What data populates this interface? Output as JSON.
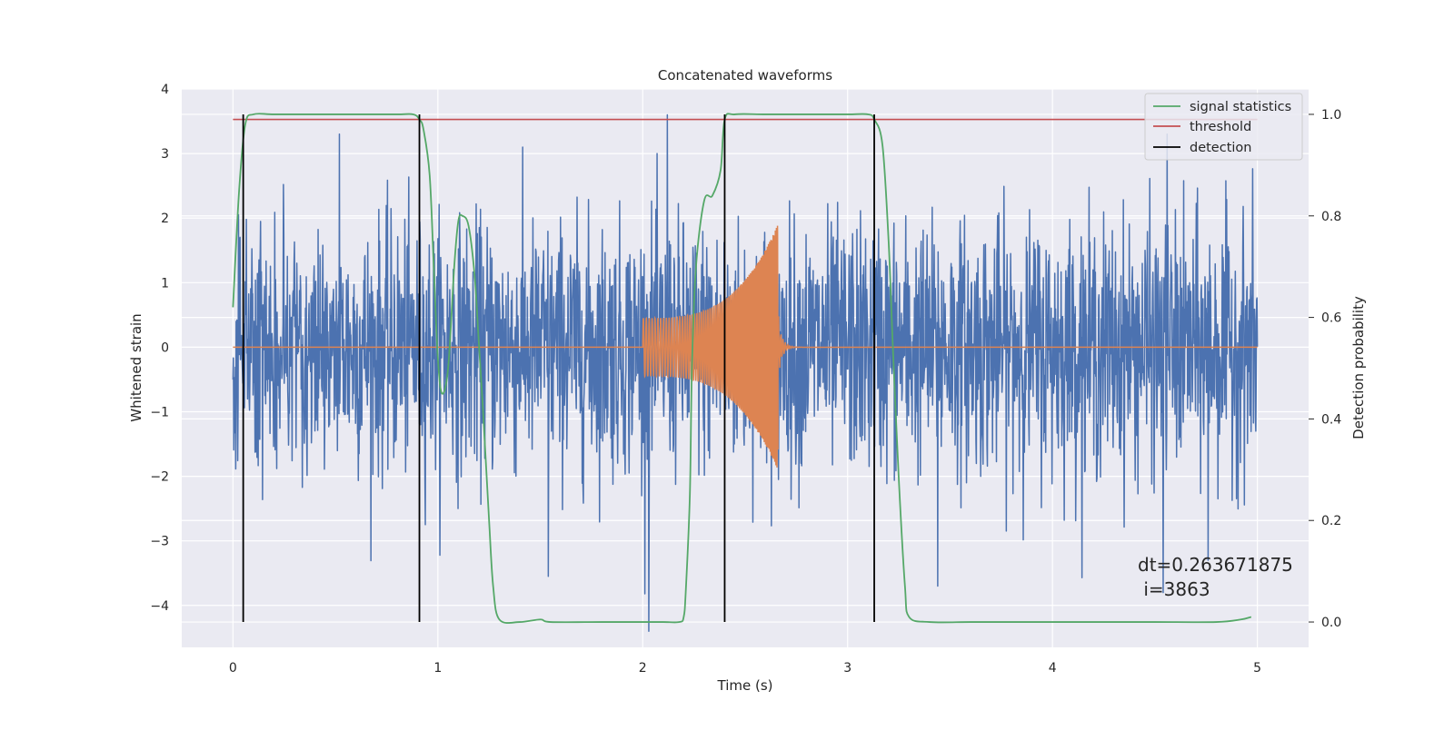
{
  "chart_data": {
    "type": "line",
    "title": "Concatenated waveforms",
    "xlabel": "Time (s)",
    "ylabel": "Whitened strain",
    "y2label": "Detection probability",
    "xlim": [
      -0.25,
      5.25
    ],
    "ylim": [
      -4.65,
      4.0
    ],
    "y2lim": [
      -0.05,
      1.05
    ],
    "xticks": [
      0,
      1,
      2,
      3,
      4,
      5
    ],
    "yticks": [
      -4,
      -3,
      -2,
      -1,
      0,
      1,
      2,
      3,
      4
    ],
    "y2ticks": [
      0.0,
      0.2,
      0.4,
      0.6,
      0.8,
      1.0
    ],
    "grid": true,
    "legend_position": "top-right",
    "legend": [
      {
        "label": "signal statistics",
        "color": "#55a868"
      },
      {
        "label": "threshold",
        "color": "#c44e52"
      },
      {
        "label": "detection",
        "color": "#000000"
      }
    ],
    "annotation": [
      "dt=0.263671875",
      " i=3863"
    ],
    "series": [
      {
        "kind": "noise",
        "axis": "left",
        "color": "#4c72b0",
        "x_range": [
          0,
          5
        ],
        "approx_range": [
          -4.4,
          3.6
        ],
        "notable_extremes": [
          {
            "x": 0.52,
            "y": 3.3
          },
          {
            "x": 2.12,
            "y": 3.6
          },
          {
            "x": 2.03,
            "y": -4.4
          },
          {
            "x": 4.56,
            "y": 3.3
          },
          {
            "x": 1.54,
            "y": -3.55
          },
          {
            "x": 3.44,
            "y": -3.7
          },
          {
            "x": 4.54,
            "y": -3.8
          },
          {
            "x": 4.76,
            "y": -3.3
          }
        ]
      },
      {
        "kind": "chirp",
        "axis": "left",
        "color": "#dd8452",
        "x_range": [
          2.0,
          2.66
        ],
        "amplitude_start": 0.45,
        "amplitude_end": 1.9
      },
      {
        "name": "signal statistics",
        "axis": "right",
        "color": "#55a868",
        "x": [
          0.0,
          0.03,
          0.06,
          0.1,
          0.2,
          0.4,
          0.6,
          0.8,
          0.88,
          0.91,
          0.93,
          0.96,
          0.98,
          1.0,
          1.02,
          1.05,
          1.08,
          1.1,
          1.12,
          1.15,
          1.18,
          1.2,
          1.22,
          1.25,
          1.27,
          1.3,
          1.4,
          1.5,
          1.55,
          1.8,
          2.0,
          2.1,
          2.18,
          2.2,
          2.21,
          2.23,
          2.24,
          2.26,
          2.3,
          2.34,
          2.38,
          2.4,
          2.45,
          2.6,
          2.8,
          3.0,
          3.1,
          3.13,
          3.17,
          3.2,
          3.22,
          3.25,
          3.28,
          3.3,
          3.4,
          3.6,
          3.8,
          4.0,
          4.2,
          4.5,
          4.8,
          4.92,
          4.97
        ],
        "values": [
          0.62,
          0.85,
          0.98,
          1.0,
          1.0,
          1.0,
          1.0,
          1.0,
          1.0,
          0.99,
          0.97,
          0.88,
          0.7,
          0.52,
          0.45,
          0.5,
          0.7,
          0.79,
          0.8,
          0.78,
          0.68,
          0.55,
          0.42,
          0.2,
          0.07,
          0.005,
          0.0,
          0.005,
          0.0,
          0.0,
          0.0,
          0.0,
          0.0,
          0.01,
          0.06,
          0.25,
          0.5,
          0.7,
          0.83,
          0.84,
          0.89,
          0.99,
          1.0,
          1.0,
          1.0,
          1.0,
          1.0,
          0.99,
          0.94,
          0.75,
          0.55,
          0.28,
          0.07,
          0.01,
          0.0,
          0.0,
          0.0,
          0.0,
          0.0,
          0.0,
          0.0,
          0.005,
          0.01
        ]
      },
      {
        "name": "threshold",
        "axis": "right",
        "color": "#c44e52",
        "x": [
          0,
          5
        ],
        "values": [
          0.99,
          0.99
        ]
      },
      {
        "name": "detection",
        "axis": "right",
        "color": "#000000",
        "kind": "vlines",
        "x": [
          0.05,
          0.91,
          2.4,
          3.13
        ],
        "ymin": 0.0,
        "ymax": 1.0
      }
    ]
  }
}
